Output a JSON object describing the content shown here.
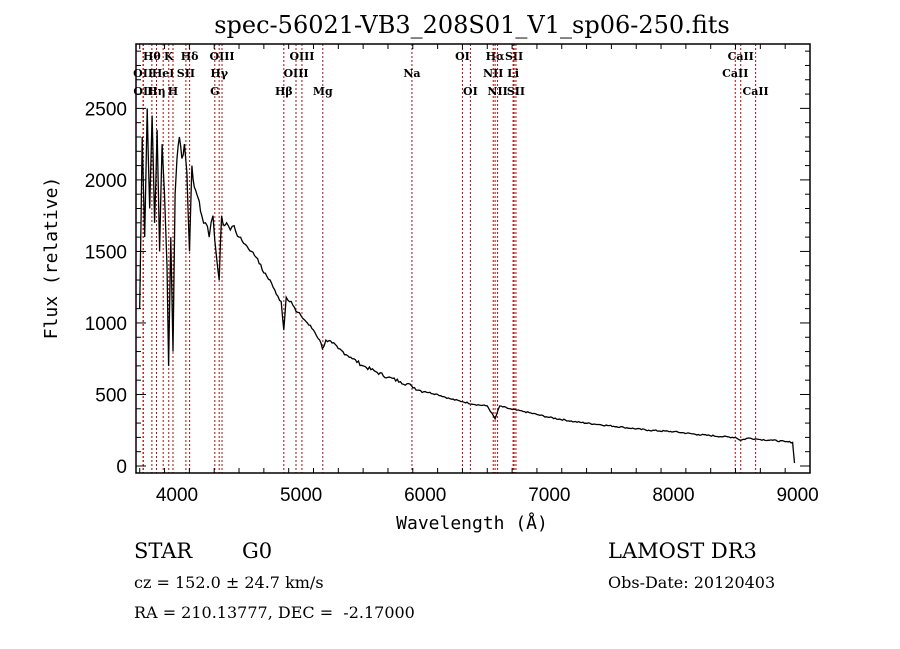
{
  "chart_data": {
    "type": "line",
    "title": "spec-56021-VB3_208S01_V1_sp06-250.fits",
    "xlabel": "Wavelength (Å)",
    "ylabel": "Flux (relative)",
    "xlim": [
      3670,
      9100
    ],
    "ylim": [
      0,
      2950
    ],
    "xticks": [
      4000,
      5000,
      6000,
      7000,
      8000,
      9000
    ],
    "xtick_labels": [
      "4000",
      "5000",
      "6000",
      "7000",
      "8000",
      "9000"
    ],
    "yticks": [
      0,
      500,
      1000,
      1500,
      2000,
      2500
    ],
    "ytick_labels": [
      "0",
      "500",
      "1000",
      "1500",
      "2000",
      "2500"
    ],
    "grid": false,
    "line_color": "#000000",
    "marker_line_color": "#a01010",
    "series": [
      {
        "name": "spectrum",
        "x": [
          3700,
          3720,
          3740,
          3760,
          3780,
          3800,
          3820,
          3840,
          3860,
          3880,
          3900,
          3920,
          3933,
          3950,
          3968,
          3985,
          4000,
          4020,
          4040,
          4060,
          4080,
          4101,
          4120,
          4140,
          4160,
          4180,
          4200,
          4230,
          4260,
          4290,
          4320,
          4340,
          4360,
          4380,
          4400,
          4430,
          4460,
          4500,
          4550,
          4600,
          4650,
          4700,
          4750,
          4800,
          4840,
          4861,
          4880,
          4920,
          4960,
          5000,
          5050,
          5100,
          5150,
          5172,
          5200,
          5250,
          5300,
          5400,
          5500,
          5600,
          5700,
          5800,
          5890,
          5950,
          6000,
          6100,
          6200,
          6300,
          6400,
          6500,
          6563,
          6600,
          6700,
          6800,
          6900,
          7000,
          7200,
          7400,
          7600,
          7800,
          8000,
          8200,
          8400,
          8498,
          8542,
          8600,
          8662,
          8700,
          8800,
          8900,
          8960,
          8975
        ],
        "y": [
          1100,
          2300,
          1600,
          2500,
          1800,
          2450,
          1700,
          2350,
          1500,
          2250,
          1900,
          1400,
          700,
          1600,
          800,
          1900,
          2150,
          2300,
          2150,
          2250,
          2050,
          1500,
          2100,
          1950,
          1900,
          1850,
          1750,
          1700,
          1600,
          1750,
          1450,
          1300,
          1750,
          1680,
          1700,
          1650,
          1680,
          1600,
          1550,
          1500,
          1450,
          1350,
          1300,
          1200,
          1150,
          950,
          1180,
          1150,
          1080,
          1050,
          1000,
          950,
          880,
          820,
          880,
          860,
          820,
          760,
          700,
          660,
          620,
          590,
          560,
          530,
          520,
          500,
          470,
          450,
          430,
          420,
          330,
          420,
          395,
          380,
          360,
          340,
          310,
          290,
          270,
          250,
          240,
          220,
          205,
          200,
          180,
          195,
          190,
          185,
          180,
          170,
          165,
          20
        ]
      }
    ],
    "spectral_lines": [
      {
        "label": "Hθ",
        "wavelength": 3798,
        "row": 1
      },
      {
        "label": "K",
        "wavelength": 3934,
        "row": 1
      },
      {
        "label": "Hδ",
        "wavelength": 4102,
        "row": 1
      },
      {
        "label": "OIII",
        "wavelength": 4363,
        "row": 1
      },
      {
        "label": "OIII",
        "wavelength": 5007,
        "row": 1
      },
      {
        "label": "OI",
        "wavelength": 6300,
        "row": 1
      },
      {
        "label": "Hα",
        "wavelength": 6563,
        "row": 1
      },
      {
        "label": "SII",
        "wavelength": 6716,
        "row": 1
      },
      {
        "label": "CaII",
        "wavelength": 8542,
        "row": 1
      },
      {
        "label": "OII",
        "wavelength": 3727,
        "row": 2
      },
      {
        "label": "HeI",
        "wavelength": 3889,
        "row": 2
      },
      {
        "label": "SII",
        "wavelength": 4072,
        "row": 2
      },
      {
        "label": "Hγ",
        "wavelength": 4340,
        "row": 2
      },
      {
        "label": "OIII",
        "wavelength": 4959,
        "row": 2
      },
      {
        "label": "Na",
        "wavelength": 5893,
        "row": 2
      },
      {
        "label": "NII",
        "wavelength": 6548,
        "row": 2
      },
      {
        "label": "Li",
        "wavelength": 6708,
        "row": 2
      },
      {
        "label": "CaII",
        "wavelength": 8498,
        "row": 2
      },
      {
        "label": "OII",
        "wavelength": 3729,
        "row": 3
      },
      {
        "label": "Hη",
        "wavelength": 3835,
        "row": 3
      },
      {
        "label": "H",
        "wavelength": 3968,
        "row": 3
      },
      {
        "label": "G",
        "wavelength": 4305,
        "row": 3
      },
      {
        "label": "Hβ",
        "wavelength": 4861,
        "row": 3
      },
      {
        "label": "Mg",
        "wavelength": 5175,
        "row": 3
      },
      {
        "label": "OI",
        "wavelength": 6364,
        "row": 3
      },
      {
        "label": "NII",
        "wavelength": 6583,
        "row": 3
      },
      {
        "label": "SII",
        "wavelength": 6731,
        "row": 3
      },
      {
        "label": "CaII",
        "wavelength": 8662,
        "row": 3
      }
    ]
  },
  "info": {
    "object_class": "STAR",
    "subclass": "G0",
    "redshift_line": "cz = 152.0 ± 24.7 km/s",
    "coords_line": "RA = 210.13777, DEC =  -2.17000",
    "survey": "LAMOST DR3",
    "obs_date": "Obs-Date: 20120403"
  }
}
